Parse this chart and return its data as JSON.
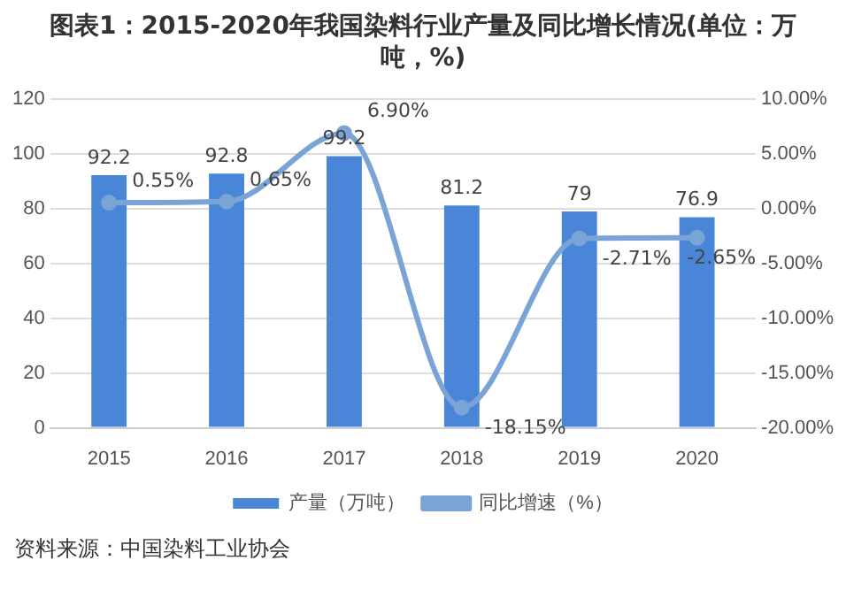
{
  "chart_data": {
    "type": "bar",
    "title": "图表1：2015-2020年我国染料行业产量及同比增长情况(单位：万吨，%)",
    "categories": [
      "2015",
      "2016",
      "2017",
      "2018",
      "2019",
      "2020"
    ],
    "series": [
      {
        "name": "产量（万吨）",
        "color": "#4a86d8",
        "values": [
          92.2,
          92.8,
          99.2,
          81.2,
          79,
          76.9
        ]
      },
      {
        "name": "同比增速（%）",
        "type": "line",
        "axis": "y2",
        "color": "#7aa3d6",
        "values": [
          0.55,
          0.65,
          6.9,
          -18.15,
          -2.71,
          -2.65
        ],
        "value_labels": [
          "0.55%",
          "0.65%",
          "6.90%",
          "-18.15%",
          "-2.71%",
          "-2.65%"
        ]
      }
    ],
    "ylim": [
      0,
      120
    ],
    "yticks": [
      0,
      20,
      40,
      60,
      80,
      100,
      120
    ],
    "y2lim": [
      -20,
      10
    ],
    "y2ticks": [
      {
        "value": -20,
        "label": "-20.00%"
      },
      {
        "value": -15,
        "label": "-15.00%"
      },
      {
        "value": -10,
        "label": "-10.00%"
      },
      {
        "value": -5,
        "label": "-5.00%"
      },
      {
        "value": 0,
        "label": "0.00%"
      },
      {
        "value": 5,
        "label": "5.00%"
      },
      {
        "value": 10,
        "label": "10.00%"
      }
    ],
    "grid": "y",
    "legend": "bottom",
    "marker": "circle",
    "data_labels": true,
    "annotations": [
      "资料来源：中国染料工业协会"
    ]
  }
}
